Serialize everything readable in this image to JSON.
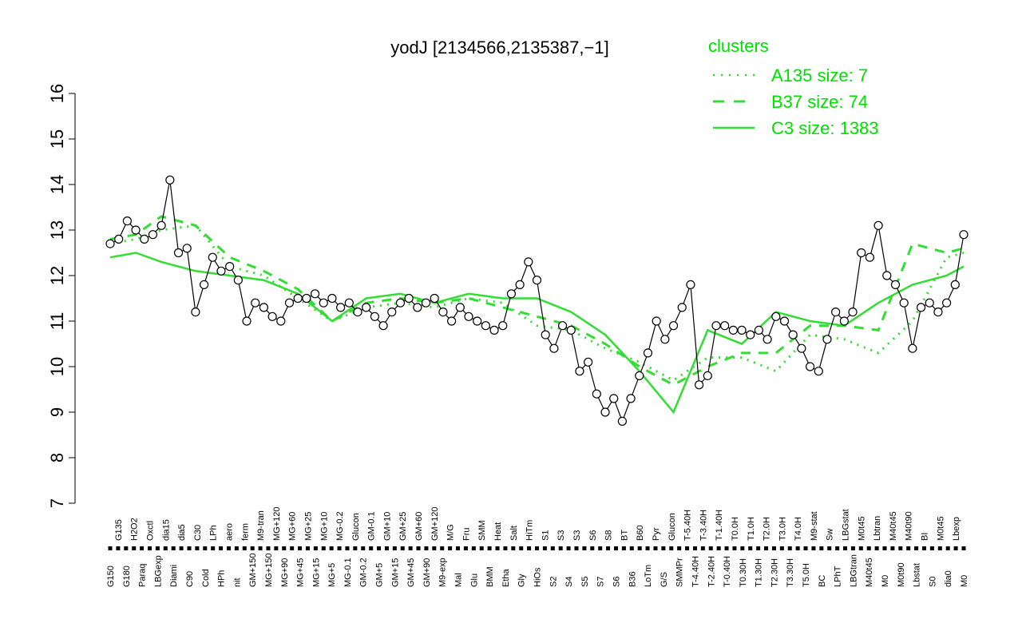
{
  "colors": {
    "cluster": "#33dd33",
    "point_fill": "#ffffff",
    "point_stroke": "#000000",
    "axis": "#000000"
  },
  "chart_data": {
    "type": "line",
    "title": "yodJ [2134566,2135387,−1]",
    "xlabel": "",
    "ylabel": "",
    "ylim": [
      7,
      16
    ],
    "yticks": [
      7,
      8,
      9,
      10,
      11,
      12,
      13,
      14,
      15,
      16
    ],
    "grid": false,
    "legend_position": "top-right",
    "legend": {
      "title": "clusters",
      "entries": [
        {
          "label": "A135 size: 7",
          "style": "dotted"
        },
        {
          "label": "B37 size: 74",
          "style": "dashed"
        },
        {
          "label": "C3 size: 1383",
          "style": "solid"
        }
      ]
    },
    "categories_top": [
      "G150",
      "G135",
      "G180",
      "H2O2",
      "Paraq",
      "Oxctl",
      "LBGexp",
      "dia15",
      "Diami",
      "dia5",
      "C90",
      "C30",
      "Cold",
      "LPh",
      "HPh",
      "aero",
      "nit",
      "ferm",
      "GM+150",
      "M9-tran",
      "MG+150",
      "MG+120",
      "MG+90",
      "MG+60",
      "MG+45",
      "MG+25",
      "MG+15",
      "MG+10",
      "MG+5",
      "MG-0.2",
      "MG-0.1",
      "Glucon",
      "GM-0.2",
      "GM-0.1",
      "GM+5",
      "GM+10",
      "GM+15",
      "GM+25",
      "GM+45",
      "GM+60",
      "GM+90",
      "GM+120",
      "M9-exp",
      "M/G",
      "Mal",
      "Fru",
      "Glu",
      "SMM",
      "BMM",
      "Heat",
      "Etha",
      "Salt",
      "Gly",
      "HiTm",
      "HiOs",
      "S1",
      "S2",
      "S3",
      "S4",
      "S3",
      "S5",
      "S6",
      "S7",
      "S8",
      "S6",
      "BT",
      "B36",
      "B60",
      "LoTm",
      "Pyr",
      "G/S",
      "Glucon",
      "SMMPr",
      "T-5.40H",
      "T-4.40H",
      "T-3.40H",
      "T-2.40H",
      "T-1.40H",
      "T-0.40H",
      "T0.0H",
      "T0.30H",
      "T1.0H",
      "T1.30H",
      "T2.0H",
      "T2.30H",
      "T3.0H",
      "T3.30H",
      "T4.0H",
      "T5.0H",
      "M9-stat",
      "BC",
      "Sw",
      "LPhT",
      "LBGstat",
      "LBGtran",
      "M0t45",
      "M40t45",
      "Lbtran",
      "M0",
      "M40t45",
      "M0t90",
      "M40t90",
      "Lbstat",
      "BI",
      "S0",
      "M0t45",
      "dia0",
      "Lbexp",
      "M0"
    ],
    "tick_labels_shown": [
      "G150",
      "G135",
      "G180",
      "H2O2",
      "Paraq",
      "Oxctl",
      "LBGexp",
      "dia15",
      "Diami",
      "dia5",
      "C90",
      "C30",
      "Cold",
      "LPh",
      "HPh",
      "aero",
      "nit",
      "ferm",
      "GM+150",
      "M9-tran",
      "MG+150",
      "MG+120",
      "MG+90",
      "MG+60",
      "MG+45",
      "MG+25",
      "MG+15",
      "MG+10",
      "MG+5",
      "MG-0.2",
      "MG-0.1",
      "Glucon",
      "GM-0.2",
      "GM-0.1",
      "GM+5",
      "GM+10",
      "GM+15",
      "GM+25",
      "GM+45",
      "GM+60",
      "GM+90",
      "GM+120",
      "M9-exp",
      "M/G",
      "Mal",
      "Fru",
      "Glu",
      "SMM",
      "BMM",
      "Heat",
      "Etha",
      "Salt",
      "Gly",
      "HiTm",
      "HiOs",
      "S1",
      "S2",
      "S3",
      "S4",
      "S3",
      "S5",
      "S6",
      "S7",
      "S8",
      "S6",
      "BT",
      "B36",
      "B60",
      "LoTm",
      "Pyr",
      "G/S",
      "Glucon",
      "SMMPr",
      "T-5.40H",
      "T-4.40H",
      "T-3.40H",
      "T-2.40H",
      "T-1.40H",
      "T-0.40H",
      "T0.0H",
      "T0.30H",
      "T1.0H",
      "T1.30H",
      "T2.0H",
      "T2.30H",
      "T3.0H",
      "T3.30H",
      "T4.0H",
      "T5.0H",
      "M9-stat",
      "BC",
      "Sw",
      "LPhT",
      "LBGstat",
      "LBGtran",
      "M0t45",
      "M40t45",
      "Lbtran",
      "M0",
      "M40t45",
      "M0t90",
      "M40t90",
      "Lbstat",
      "BI",
      "S0",
      "M0t45",
      "dia0",
      "Lbexp",
      "M0"
    ],
    "series": [
      {
        "name": "A135 size: 7",
        "style": "dotted",
        "x": [
          0,
          3,
          6,
          10,
          14,
          18,
          22,
          26,
          30,
          34,
          38,
          42,
          46,
          50,
          54,
          58,
          62,
          66,
          70,
          74,
          78,
          82,
          86,
          90,
          94,
          98,
          100
        ],
        "values": [
          12.7,
          12.8,
          13.0,
          13.1,
          12.2,
          12.0,
          11.5,
          11.0,
          11.3,
          11.4,
          11.3,
          11.5,
          11.4,
          10.9,
          10.8,
          10.4,
          10.1,
          9.7,
          10.2,
          10.2,
          9.9,
          10.7,
          10.6,
          10.3,
          11.0,
          12.4,
          12.5
        ]
      },
      {
        "name": "B37 size: 74",
        "style": "dashed",
        "x": [
          0,
          3,
          6,
          10,
          14,
          18,
          22,
          26,
          30,
          34,
          38,
          42,
          46,
          50,
          54,
          58,
          62,
          66,
          70,
          74,
          78,
          82,
          86,
          90,
          94,
          98,
          100
        ],
        "values": [
          12.8,
          12.9,
          13.3,
          13.1,
          12.4,
          12.1,
          11.7,
          11.0,
          11.4,
          11.5,
          11.4,
          11.5,
          11.3,
          11.1,
          10.9,
          10.5,
          10.0,
          9.6,
          10.0,
          10.3,
          10.3,
          10.9,
          10.9,
          10.8,
          12.7,
          12.5,
          12.6
        ]
      },
      {
        "name": "C3 size: 1383",
        "style": "solid",
        "x": [
          0,
          3,
          6,
          10,
          14,
          18,
          22,
          26,
          30,
          34,
          38,
          42,
          46,
          50,
          54,
          58,
          62,
          66,
          70,
          74,
          78,
          82,
          86,
          90,
          94,
          98,
          100
        ],
        "values": [
          12.4,
          12.5,
          12.3,
          12.1,
          12.0,
          11.9,
          11.6,
          11.0,
          11.5,
          11.6,
          11.4,
          11.6,
          11.5,
          11.5,
          11.2,
          10.7,
          9.9,
          9.0,
          10.8,
          10.5,
          11.2,
          11.0,
          10.9,
          11.4,
          11.8,
          12.0,
          12.2
        ]
      }
    ],
    "points": {
      "x": [
        0,
        1,
        2,
        3,
        4,
        5,
        6,
        7,
        8,
        9,
        10,
        11,
        12,
        13,
        14,
        15,
        16,
        17,
        18,
        19,
        20,
        21,
        22,
        23,
        24,
        25,
        26,
        27,
        28,
        29,
        30,
        31,
        32,
        33,
        34,
        35,
        36,
        37,
        38,
        39,
        40,
        41,
        42,
        43,
        44,
        45,
        46,
        47,
        48,
        49,
        50,
        51,
        52,
        53,
        54,
        55,
        56,
        57,
        58,
        59,
        60,
        61,
        62,
        63,
        64,
        65,
        66,
        67,
        68,
        69,
        70,
        71,
        72,
        73,
        74,
        75,
        76,
        77,
        78,
        79,
        80,
        81,
        82,
        83,
        84,
        85,
        86,
        87,
        88,
        89,
        90,
        91,
        92,
        93,
        94,
        95,
        96,
        97,
        98,
        99,
        100
      ],
      "values": [
        12.7,
        12.8,
        13.2,
        13.0,
        12.8,
        12.9,
        13.1,
        14.1,
        12.5,
        12.6,
        11.2,
        11.8,
        12.4,
        12.1,
        12.2,
        11.9,
        11.0,
        11.4,
        11.3,
        11.1,
        11.0,
        11.4,
        11.5,
        11.5,
        11.6,
        11.4,
        11.5,
        11.3,
        11.4,
        11.2,
        11.3,
        11.1,
        10.9,
        11.2,
        11.4,
        11.5,
        11.3,
        11.4,
        11.5,
        11.2,
        11.0,
        11.3,
        11.1,
        11.0,
        10.9,
        10.8,
        10.9,
        11.6,
        11.8,
        12.3,
        11.9,
        10.7,
        10.4,
        10.9,
        10.8,
        9.9,
        10.1,
        9.4,
        9.0,
        9.3,
        8.8,
        9.3,
        9.8,
        10.3,
        11.0,
        10.6,
        10.9,
        11.3,
        11.8,
        9.6,
        9.8,
        10.9,
        10.9,
        10.8,
        10.8,
        10.7,
        10.8,
        10.6,
        11.1,
        11.0,
        10.7,
        10.4,
        10.0,
        9.9,
        10.6,
        11.2,
        11.0,
        11.2,
        12.5,
        12.4,
        13.1,
        12.0,
        11.8,
        11.4,
        10.4,
        11.3,
        11.4,
        11.2,
        11.4,
        11.8,
        12.9
      ]
    }
  }
}
